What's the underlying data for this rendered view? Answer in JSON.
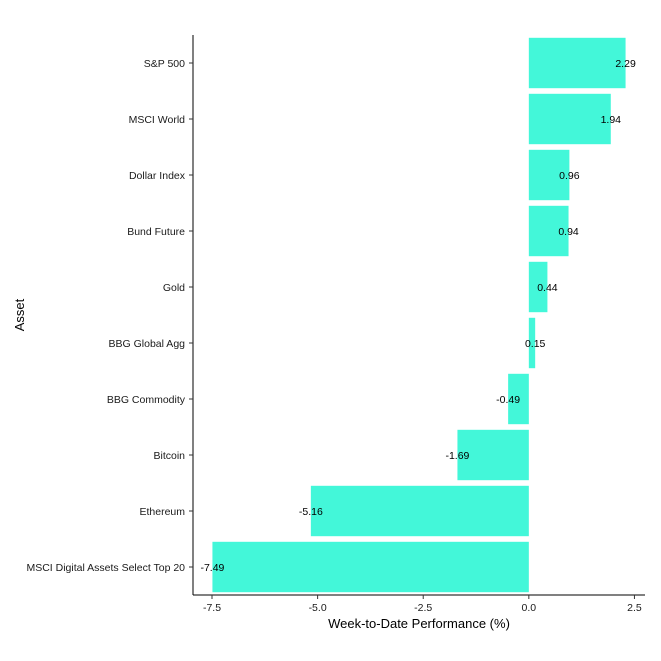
{
  "chart_data": {
    "type": "bar",
    "orientation": "horizontal",
    "xlabel": "Week-to-Date Performance (%)",
    "ylabel": "Asset",
    "categories": [
      "S&P 500",
      "MSCI World",
      "Dollar Index",
      "Bund Future",
      "Gold",
      "BBG Global Agg",
      "BBG Commodity",
      "Bitcoin",
      "Ethereum",
      "MSCI Digital Assets Select Top 20"
    ],
    "values": [
      2.29,
      1.94,
      0.96,
      0.94,
      0.44,
      0.15,
      -0.49,
      -1.69,
      -5.16,
      -7.49
    ],
    "value_labels": [
      "2.29",
      "1.94",
      "0.96",
      "0.94",
      "0.44",
      "0.15",
      "-0.49",
      "-1.69",
      "-5.16",
      "-7.49"
    ],
    "xticks": [
      -7.5,
      -5.0,
      -2.5,
      0.0,
      2.5
    ],
    "xtick_labels": [
      "-7.5",
      "-5.0",
      "-2.5",
      "0.0",
      "2.5"
    ],
    "xlim": [
      -7.95,
      2.75
    ],
    "grid": false,
    "legend": "none",
    "bar_color": "#43F7D9"
  }
}
